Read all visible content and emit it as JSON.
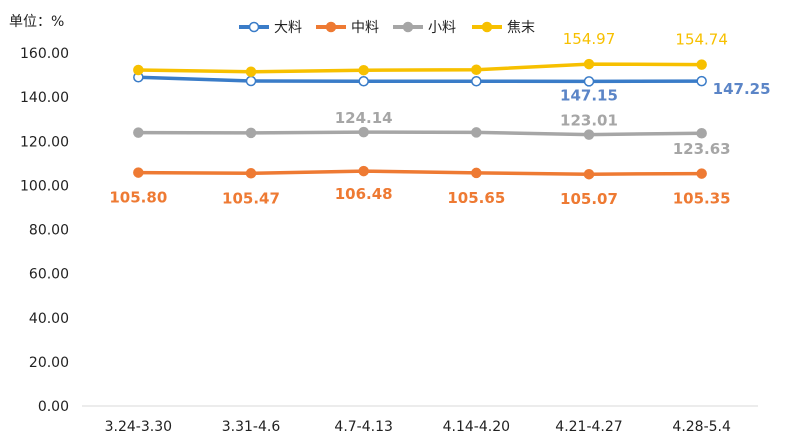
{
  "chart_data": {
    "type": "line",
    "ylabel": "单位：%",
    "ylim": [
      0,
      160
    ],
    "yticks": [
      "0.00",
      "20.00",
      "40.00",
      "60.00",
      "80.00",
      "100.00",
      "120.00",
      "140.00",
      "160.00"
    ],
    "categories": [
      "3.24-3.30",
      "3.31-4.6",
      "4.7-4.13",
      "4.14-4.20",
      "4.21-4.27",
      "4.28-5.4"
    ],
    "legend_position": "top",
    "grid": false,
    "series": [
      {
        "name": "大料",
        "color": "#3A7CC8",
        "marker": "hollow-circle",
        "values": [
          149.0,
          147.3,
          147.2,
          147.2,
          147.15,
          147.25
        ],
        "labels": [
          "",
          "",
          "",
          "",
          "147.15",
          "147.25"
        ],
        "label_color": "#5B85C7"
      },
      {
        "name": "中料",
        "color": "#EE7A33",
        "marker": "filled-circle",
        "values": [
          105.8,
          105.47,
          106.48,
          105.65,
          105.07,
          105.35
        ],
        "labels": [
          "105.80",
          "105.47",
          "106.48",
          "105.65",
          "105.07",
          "105.35"
        ],
        "label_color": "#EE7A33"
      },
      {
        "name": "小料",
        "color": "#A6A6A6",
        "marker": "filled-circle",
        "values": [
          123.9,
          123.8,
          124.14,
          124.0,
          123.01,
          123.63
        ],
        "labels": [
          "",
          "",
          "124.14",
          "",
          "123.01",
          "123.63"
        ],
        "label_color": "#A6A6A6"
      },
      {
        "name": "焦末",
        "color": "#F7C000",
        "marker": "filled-circle",
        "values": [
          152.3,
          151.5,
          152.2,
          152.4,
          154.97,
          154.74
        ],
        "labels": [
          "",
          "",
          "",
          "",
          "154.97",
          "154.74"
        ],
        "label_color": "#F7C000"
      }
    ]
  }
}
